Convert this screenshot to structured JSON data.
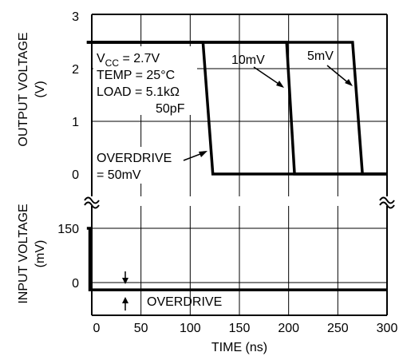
{
  "chart_data": [
    {
      "type": "line",
      "title": "",
      "xlabel": "TIME (ns)",
      "ylabel": [
        "OUTPUT VOLTAGE",
        "(V)"
      ],
      "xlim": [
        0,
        300
      ],
      "ylim": [
        0,
        3
      ],
      "y_ticks": [
        "0",
        "1",
        "2",
        "3"
      ],
      "x_ticks": [
        "0",
        "50",
        "100",
        "150",
        "200",
        "250",
        "300"
      ],
      "grid": true,
      "conditions": {
        "vcc_main": "V",
        "vcc_sub": "CC",
        "vcc_value": " = 2.7V",
        "temp": "TEMP = 25°C",
        "load": "LOAD = 5.1kΩ",
        "cap": "50pF"
      },
      "series": [
        {
          "name": "OVERDRIVE = 50mV",
          "points": [
            [
              -5,
              2.5
            ],
            [
              113,
              2.5
            ],
            [
              123,
              0
            ],
            [
              300,
              0
            ]
          ]
        },
        {
          "name": "10mV",
          "points": [
            [
              -5,
              2.5
            ],
            [
              198,
              2.5
            ],
            [
              206,
              0
            ],
            [
              300,
              0
            ]
          ]
        },
        {
          "name": "5mV",
          "points": [
            [
              -5,
              2.5
            ],
            [
              265,
              2.5
            ],
            [
              275,
              0
            ],
            [
              300,
              0
            ]
          ]
        }
      ],
      "annotations": [
        {
          "text": "OVERDRIVE",
          "line": 1
        },
        {
          "text": "= 50mV",
          "line": 2
        },
        {
          "text": "10mV"
        },
        {
          "text": "5mV"
        }
      ]
    },
    {
      "type": "line",
      "title": "",
      "xlabel": "TIME (ns)",
      "ylabel": [
        "INPUT VOLTAGE",
        "(mV)"
      ],
      "xlim": [
        0,
        300
      ],
      "ylim": [
        -20,
        150
      ],
      "y_ticks": [
        "0",
        "150"
      ],
      "series": [
        {
          "name": "input",
          "points": [
            [
              -5,
              150
            ],
            [
              -2,
              150
            ],
            [
              -2,
              -20
            ],
            [
              300,
              -20
            ]
          ]
        }
      ],
      "annotations": [
        {
          "text": "OVERDRIVE"
        }
      ]
    }
  ]
}
